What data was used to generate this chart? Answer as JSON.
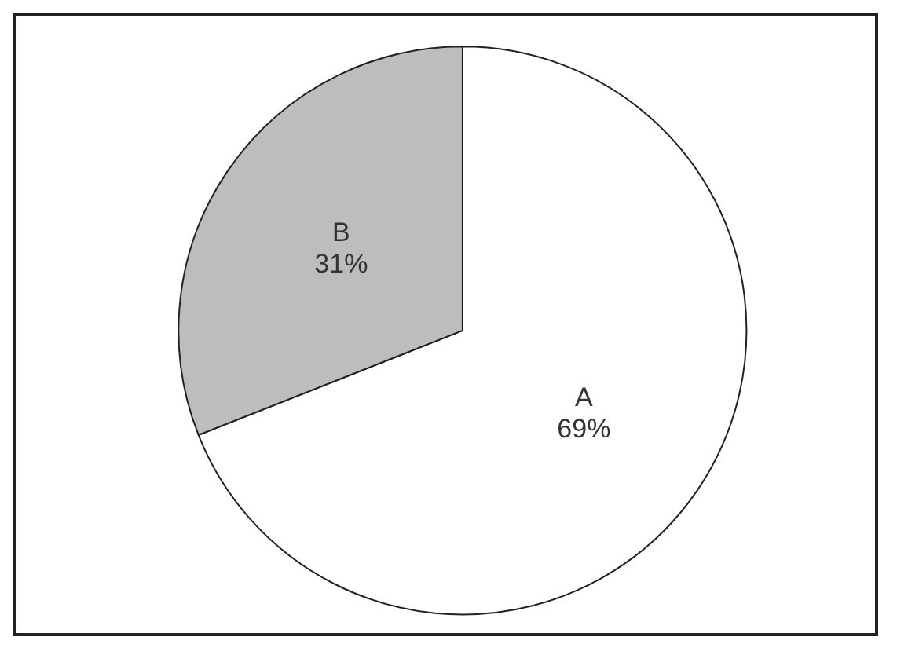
{
  "chart_data": {
    "type": "pie",
    "categories": [
      "A",
      "B"
    ],
    "values": [
      69,
      31
    ],
    "colors": [
      "#ffffff",
      "#bdbdbd"
    ],
    "value_labels": [
      "69%",
      "31%"
    ]
  }
}
